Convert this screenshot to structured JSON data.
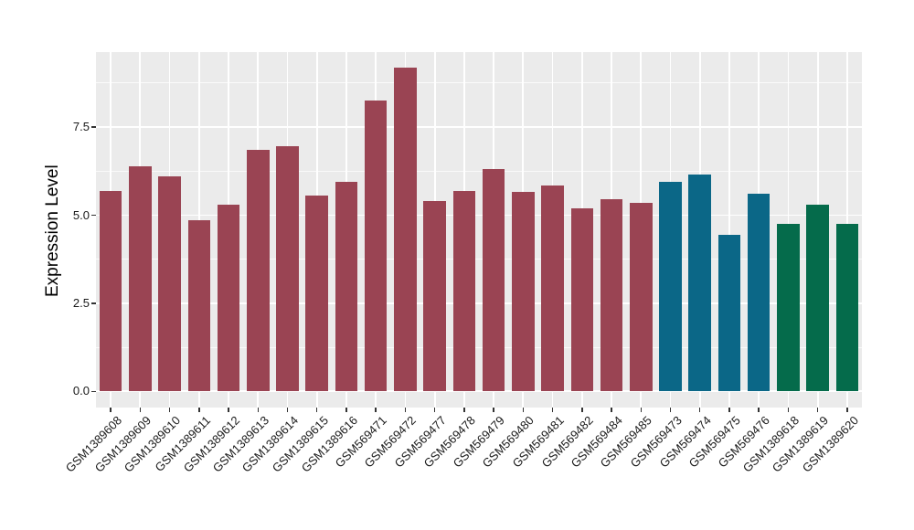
{
  "chart_data": {
    "type": "bar",
    "title": "",
    "xlabel": "",
    "ylabel": "Expression Level",
    "categories": [
      "GSM1389608",
      "GSM1389609",
      "GSM1389610",
      "GSM1389611",
      "GSM1389612",
      "GSM1389613",
      "GSM1389614",
      "GSM1389615",
      "GSM1389616",
      "GSM569471",
      "GSM569472",
      "GSM569477",
      "GSM569478",
      "GSM569479",
      "GSM569480",
      "GSM569481",
      "GSM569482",
      "GSM569484",
      "GSM569485",
      "GSM569473",
      "GSM569474",
      "GSM569475",
      "GSM569476",
      "GSM1389618",
      "GSM1389619",
      "GSM1389620"
    ],
    "values": [
      5.7,
      6.4,
      6.1,
      4.85,
      5.3,
      6.85,
      6.95,
      5.55,
      5.95,
      8.25,
      9.2,
      5.4,
      5.7,
      6.3,
      5.65,
      5.85,
      5.2,
      5.45,
      5.35,
      5.95,
      6.15,
      4.45,
      5.6,
      4.75,
      5.3,
      4.75
    ],
    "bar_colors": [
      "#9A4453",
      "#9A4453",
      "#9A4453",
      "#9A4453",
      "#9A4453",
      "#9A4453",
      "#9A4453",
      "#9A4453",
      "#9A4453",
      "#9A4453",
      "#9A4453",
      "#9A4453",
      "#9A4453",
      "#9A4453",
      "#9A4453",
      "#9A4453",
      "#9A4453",
      "#9A4453",
      "#9A4453",
      "#0B6787",
      "#0B6787",
      "#0B6787",
      "#0B6787",
      "#056B4B",
      "#056B4B",
      "#056B4B"
    ],
    "color_groups": {
      "maroon": "#9A4453",
      "teal": "#0B6787",
      "green": "#056B4B"
    },
    "yticks": [
      0,
      2.5,
      5,
      7.5
    ],
    "ytick_labels": [
      "0.0",
      "2.5",
      "5.0",
      "7.5"
    ],
    "yminor": [
      1.25,
      3.75,
      6.25,
      8.75
    ],
    "ylim": [
      -0.46,
      9.63
    ],
    "grid": true,
    "legend": false,
    "panel_bg": "#EBEBEB",
    "grid_color": "#FFFFFF",
    "axis_text_color": "#1A1A1A"
  }
}
